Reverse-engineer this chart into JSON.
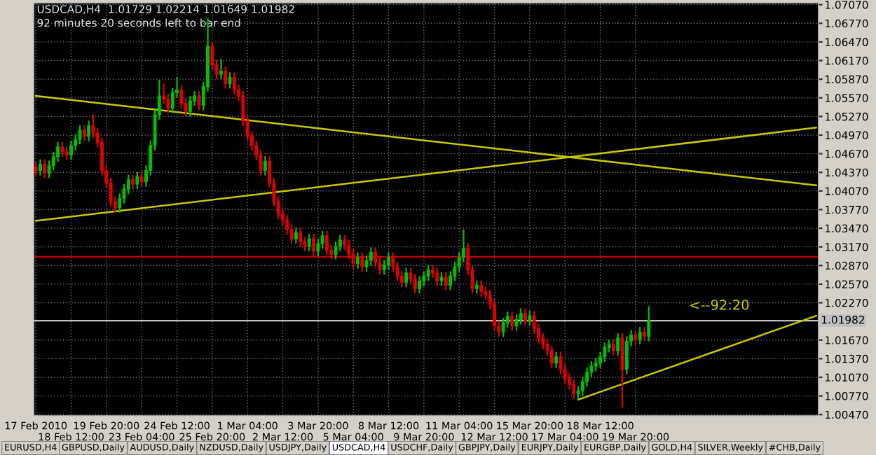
{
  "chart_data": {
    "type": "candlestick",
    "title": "USDCAD,H4  1.01729 1.02214 1.01649 1.01982",
    "subtitle": "92 minutes 20 seconds left to bar end",
    "categories": [
      "17 Feb 2010",
      null,
      null,
      null,
      null,
      null,
      null,
      null,
      "18 Feb 12:00",
      null,
      null,
      null,
      null,
      null,
      null,
      null,
      "19 Feb 20:00",
      null,
      null,
      null,
      null,
      null,
      null,
      null,
      "23 Feb 04:00",
      null,
      null,
      null,
      null,
      null,
      null,
      null,
      "24 Feb 12:00",
      null,
      null,
      null,
      null,
      null,
      null,
      null,
      "25 Feb 20:00",
      null,
      null,
      null,
      null,
      null,
      null,
      null,
      "1 Mar 04:00",
      null,
      null,
      null,
      null,
      null,
      null,
      null,
      "2 Mar 12:00",
      null,
      null,
      null,
      null,
      null,
      null,
      null,
      "3 Mar 20:00",
      null,
      null,
      null,
      null,
      null,
      null,
      null,
      "5 Mar 04:00",
      null,
      null,
      null,
      null,
      null,
      null,
      null,
      "8 Mar 12:00",
      null,
      null,
      null,
      null,
      null,
      null,
      null,
      "9 Mar 20:00",
      null,
      null,
      null,
      null,
      null,
      null,
      null,
      "11 Mar 04:00",
      null,
      null,
      null,
      null,
      null,
      null,
      null,
      "12 Mar 12:00",
      null,
      null,
      null,
      null,
      null,
      null,
      null,
      "15 Mar 20:00",
      null,
      null,
      null,
      null,
      null,
      null,
      null,
      "17 Mar 04:00",
      null,
      null,
      null,
      null,
      null,
      null,
      null,
      "18 Mar 12:00",
      null,
      null,
      null,
      null,
      null,
      null,
      null,
      "19 Mar 20:00",
      null,
      null,
      null,
      null,
      null,
      null,
      null,
      null,
      null,
      null,
      null,
      null,
      null,
      null,
      null,
      null,
      null,
      null,
      null,
      null,
      null,
      null,
      null,
      null,
      null,
      null,
      null,
      null,
      null,
      null,
      null,
      null,
      null,
      null,
      null,
      null,
      null,
      null,
      null,
      null,
      null
    ],
    "ohlc": [
      [
        1.0445,
        1.0453,
        1.0432,
        1.044
      ],
      [
        1.044,
        1.0458,
        1.0432,
        1.045
      ],
      [
        1.045,
        1.0458,
        1.0428,
        1.0436
      ],
      [
        1.0436,
        1.0456,
        1.0428,
        1.0448
      ],
      [
        1.0448,
        1.047,
        1.044,
        1.0462
      ],
      [
        1.0462,
        1.0486,
        1.0454,
        1.0478
      ],
      [
        1.0478,
        1.0486,
        1.0462,
        1.047
      ],
      [
        1.047,
        1.0478,
        1.0457,
        1.0465
      ],
      [
        1.0465,
        1.0488,
        1.0457,
        1.048
      ],
      [
        1.048,
        1.0498,
        1.0472,
        1.049
      ],
      [
        1.049,
        1.0513,
        1.0482,
        1.0505
      ],
      [
        1.0505,
        1.0513,
        1.0487,
        1.0495
      ],
      [
        1.0495,
        1.052,
        1.0487,
        1.0512
      ],
      [
        1.0512,
        1.053,
        1.0492,
        1.05
      ],
      [
        1.05,
        1.0508,
        1.0477,
        1.0485
      ],
      [
        1.0485,
        1.0493,
        1.0432,
        1.044
      ],
      [
        1.044,
        1.0448,
        1.0412,
        1.042
      ],
      [
        1.042,
        1.0428,
        1.0382,
        1.039
      ],
      [
        1.039,
        1.0398,
        1.0372,
        1.038
      ],
      [
        1.038,
        1.0403,
        1.0372,
        1.0395
      ],
      [
        1.0395,
        1.0418,
        1.0387,
        1.041
      ],
      [
        1.041,
        1.0433,
        1.0402,
        1.0425
      ],
      [
        1.0425,
        1.0433,
        1.041,
        1.0418
      ],
      [
        1.0418,
        1.0438,
        1.041,
        1.043
      ],
      [
        1.043,
        1.0438,
        1.0414,
        1.0422
      ],
      [
        1.0422,
        1.0448,
        1.0414,
        1.044
      ],
      [
        1.044,
        1.0488,
        1.0432,
        1.048
      ],
      [
        1.048,
        1.0538,
        1.0472,
        1.053
      ],
      [
        1.053,
        1.0586,
        1.0522,
        1.056
      ],
      [
        1.056,
        1.058,
        1.0547,
        1.0555
      ],
      [
        1.0555,
        1.0563,
        1.0532,
        1.054
      ],
      [
        1.054,
        1.0573,
        1.0532,
        1.0565
      ],
      [
        1.0565,
        1.059,
        1.0557,
        1.057
      ],
      [
        1.057,
        1.0578,
        1.054,
        1.0548
      ],
      [
        1.0548,
        1.0556,
        1.0527,
        1.0535
      ],
      [
        1.0535,
        1.056,
        1.0527,
        1.0552
      ],
      [
        1.0552,
        1.0568,
        1.0544,
        1.056
      ],
      [
        1.056,
        1.0568,
        1.0537,
        1.0545
      ],
      [
        1.0545,
        1.0583,
        1.0537,
        1.0575
      ],
      [
        1.0575,
        1.0686,
        1.0567,
        1.064
      ],
      [
        1.064,
        1.0648,
        1.0602,
        1.061
      ],
      [
        1.061,
        1.0618,
        1.0587,
        1.0595
      ],
      [
        1.0595,
        1.062,
        1.0587,
        1.06
      ],
      [
        1.06,
        1.0608,
        1.0572,
        1.058
      ],
      [
        1.058,
        1.0598,
        1.0572,
        1.059
      ],
      [
        1.059,
        1.0598,
        1.0562,
        1.057
      ],
      [
        1.057,
        1.0578,
        1.0552,
        1.056
      ],
      [
        1.056,
        1.0568,
        1.0512,
        1.052
      ],
      [
        1.052,
        1.0528,
        1.0487,
        1.0495
      ],
      [
        1.0495,
        1.0503,
        1.0472,
        1.048
      ],
      [
        1.048,
        1.0488,
        1.0457,
        1.0465
      ],
      [
        1.0465,
        1.0473,
        1.0432,
        1.044
      ],
      [
        1.044,
        1.0463,
        1.0432,
        1.0455
      ],
      [
        1.0455,
        1.0463,
        1.0412,
        1.042
      ],
      [
        1.042,
        1.0428,
        1.0382,
        1.039
      ],
      [
        1.039,
        1.0398,
        1.0362,
        1.037
      ],
      [
        1.037,
        1.0378,
        1.0352,
        1.036
      ],
      [
        1.036,
        1.0368,
        1.0337,
        1.0345
      ],
      [
        1.0345,
        1.0353,
        1.0322,
        1.033
      ],
      [
        1.033,
        1.0348,
        1.0322,
        1.034
      ],
      [
        1.034,
        1.0348,
        1.0317,
        1.0325
      ],
      [
        1.0325,
        1.0333,
        1.031,
        1.0318
      ],
      [
        1.0318,
        1.0338,
        1.031,
        1.033
      ],
      [
        1.033,
        1.0338,
        1.0302,
        1.031
      ],
      [
        1.031,
        1.033,
        1.0302,
        1.0322
      ],
      [
        1.0322,
        1.0343,
        1.0314,
        1.0335
      ],
      [
        1.0335,
        1.0343,
        1.0304,
        1.0312
      ],
      [
        1.0312,
        1.032,
        1.0297,
        1.0305
      ],
      [
        1.0305,
        1.0326,
        1.0297,
        1.0318
      ],
      [
        1.0318,
        1.0336,
        1.031,
        1.0328
      ],
      [
        1.0328,
        1.0336,
        1.0312,
        1.032
      ],
      [
        1.032,
        1.0328,
        1.0297,
        1.0305
      ],
      [
        1.0305,
        1.0313,
        1.0282,
        1.029
      ],
      [
        1.029,
        1.0308,
        1.0282,
        1.03
      ],
      [
        1.03,
        1.0308,
        1.0277,
        1.0285
      ],
      [
        1.0285,
        1.0303,
        1.0277,
        1.0295
      ],
      [
        1.0295,
        1.0316,
        1.0287,
        1.0308
      ],
      [
        1.0308,
        1.0316,
        1.0284,
        1.0292
      ],
      [
        1.0292,
        1.03,
        1.0272,
        1.028
      ],
      [
        1.028,
        1.0296,
        1.0272,
        1.0288
      ],
      [
        1.0288,
        1.0308,
        1.028,
        1.03
      ],
      [
        1.03,
        1.0308,
        1.0277,
        1.0285
      ],
      [
        1.0285,
        1.0293,
        1.0262,
        1.027
      ],
      [
        1.027,
        1.0278,
        1.0252,
        1.026
      ],
      [
        1.026,
        1.0283,
        1.0252,
        1.0275
      ],
      [
        1.0275,
        1.0283,
        1.0257,
        1.0265
      ],
      [
        1.0265,
        1.0273,
        1.0242,
        1.025
      ],
      [
        1.025,
        1.027,
        1.0242,
        1.0262
      ],
      [
        1.0262,
        1.0278,
        1.0254,
        1.027
      ],
      [
        1.027,
        1.0288,
        1.0262,
        1.028
      ],
      [
        1.028,
        1.0288,
        1.0267,
        1.0275
      ],
      [
        1.0275,
        1.0283,
        1.0254,
        1.0262
      ],
      [
        1.0262,
        1.0276,
        1.0254,
        1.0268
      ],
      [
        1.0268,
        1.0276,
        1.0247,
        1.0255
      ],
      [
        1.0255,
        1.0278,
        1.0247,
        1.027
      ],
      [
        1.027,
        1.0293,
        1.0262,
        1.0285
      ],
      [
        1.0285,
        1.0308,
        1.0277,
        1.03
      ],
      [
        1.03,
        1.0345,
        1.0292,
        1.0315
      ],
      [
        1.0315,
        1.0323,
        1.0272,
        1.028
      ],
      [
        1.028,
        1.0288,
        1.0242,
        1.025
      ],
      [
        1.025,
        1.0263,
        1.0242,
        1.0255
      ],
      [
        1.0255,
        1.0263,
        1.0237,
        1.0245
      ],
      [
        1.0245,
        1.0253,
        1.0232,
        1.024
      ],
      [
        1.024,
        1.0248,
        1.0217,
        1.0225
      ],
      [
        1.0225,
        1.0233,
        1.0182,
        1.019
      ],
      [
        1.019,
        1.0198,
        1.0172,
        1.018
      ],
      [
        1.018,
        1.0203,
        1.0172,
        1.0195
      ],
      [
        1.0195,
        1.0213,
        1.0187,
        1.0205
      ],
      [
        1.0205,
        1.0213,
        1.0182,
        1.019
      ],
      [
        1.019,
        1.0208,
        1.0182,
        1.02
      ],
      [
        1.02,
        1.0218,
        1.0192,
        1.021
      ],
      [
        1.021,
        1.0218,
        1.019,
        1.0198
      ],
      [
        1.0198,
        1.0214,
        1.019,
        1.0206
      ],
      [
        1.0206,
        1.0214,
        1.0177,
        1.0185
      ],
      [
        1.0185,
        1.0193,
        1.0162,
        1.017
      ],
      [
        1.017,
        1.0178,
        1.0152,
        1.016
      ],
      [
        1.016,
        1.0168,
        1.0142,
        1.015
      ],
      [
        1.015,
        1.0158,
        1.0122,
        1.013
      ],
      [
        1.013,
        1.0148,
        1.0122,
        1.014
      ],
      [
        1.014,
        1.0148,
        1.0112,
        1.012
      ],
      [
        1.012,
        1.0128,
        1.0097,
        1.0105
      ],
      [
        1.0105,
        1.0113,
        1.0087,
        1.0095
      ],
      [
        1.0095,
        1.0103,
        1.0072,
        1.008
      ],
      [
        1.008,
        1.0093,
        1.0072,
        1.0085
      ],
      [
        1.0085,
        1.0108,
        1.0077,
        1.01
      ],
      [
        1.01,
        1.0123,
        1.0092,
        1.0115
      ],
      [
        1.0115,
        1.0133,
        1.0107,
        1.0125
      ],
      [
        1.0125,
        1.0138,
        1.0117,
        1.013
      ],
      [
        1.013,
        1.0148,
        1.0122,
        1.014
      ],
      [
        1.014,
        1.0163,
        1.0132,
        1.0155
      ],
      [
        1.0155,
        1.0168,
        1.0147,
        1.016
      ],
      [
        1.016,
        1.0168,
        1.0142,
        1.015
      ],
      [
        1.015,
        1.0178,
        1.0142,
        1.017
      ],
      [
        1.017,
        1.0178,
        1.0058,
        1.012
      ],
      [
        1.012,
        1.0173,
        1.0112,
        1.0165
      ],
      [
        1.0165,
        1.0183,
        1.0157,
        1.0175
      ],
      [
        1.0175,
        1.0183,
        1.016,
        1.0168
      ],
      [
        1.0168,
        1.0188,
        1.016,
        1.018
      ],
      [
        1.018,
        1.0188,
        1.0165,
        1.0173
      ],
      [
        1.01729,
        1.02214,
        1.01649,
        1.01982
      ],
      null,
      null,
      null,
      null,
      null,
      null,
      null,
      null,
      null,
      null,
      null,
      null,
      null,
      null,
      null,
      null,
      null,
      null,
      null,
      null,
      null,
      null,
      null,
      null,
      null,
      null,
      null,
      null,
      null,
      null,
      null,
      null,
      null,
      null,
      null,
      null,
      null,
      null
    ],
    "series": [
      {
        "type": "line",
        "color": "#c8c800",
        "values": [
          1.056,
          null,
          null,
          null,
          null,
          null,
          null,
          null,
          null,
          null,
          null,
          null,
          null,
          null,
          null,
          null,
          null,
          null,
          null,
          null,
          null,
          null,
          null,
          null,
          null,
          null,
          null,
          null,
          null,
          null,
          null,
          null,
          null,
          null,
          null,
          null,
          null,
          null,
          null,
          null,
          null,
          null,
          null,
          null,
          null,
          null,
          null,
          null,
          null,
          null,
          null,
          null,
          null,
          null,
          null,
          null,
          null,
          null,
          null,
          null,
          null,
          null,
          null,
          null,
          null,
          null,
          null,
          null,
          null,
          null,
          null,
          null,
          null,
          null,
          null,
          null,
          null,
          null,
          null,
          null,
          null,
          null,
          null,
          null,
          null,
          null,
          null,
          null,
          null,
          null,
          null,
          null,
          null,
          null,
          null,
          null,
          null,
          null,
          null,
          null,
          null,
          null,
          null,
          null,
          null,
          null,
          null,
          null,
          null,
          null,
          null,
          null,
          null,
          null,
          null,
          null,
          null,
          null,
          null,
          null,
          null,
          null,
          null,
          null,
          null,
          null,
          null,
          null,
          null,
          null,
          null,
          null,
          null,
          null,
          null,
          null,
          null,
          null,
          null,
          null,
          null,
          null,
          null,
          null,
          null,
          null,
          null,
          null,
          null,
          null,
          null,
          null,
          null,
          null,
          null,
          null,
          null,
          null,
          null,
          null,
          null,
          null,
          null,
          null,
          null,
          null,
          null,
          null,
          null,
          null,
          null,
          null,
          null,
          null,
          null,
          null,
          null,
          1.0416
        ]
      },
      {
        "type": "line",
        "color": "#c8c800",
        "values": [
          1.0359,
          null,
          null,
          null,
          null,
          null,
          null,
          null,
          null,
          null,
          null,
          null,
          null,
          null,
          null,
          null,
          null,
          null,
          null,
          null,
          null,
          null,
          null,
          null,
          null,
          null,
          null,
          null,
          null,
          null,
          null,
          null,
          null,
          null,
          null,
          null,
          null,
          null,
          null,
          null,
          null,
          null,
          null,
          null,
          null,
          null,
          null,
          null,
          null,
          null,
          null,
          null,
          null,
          null,
          null,
          null,
          null,
          null,
          null,
          null,
          null,
          null,
          null,
          null,
          null,
          null,
          null,
          null,
          null,
          null,
          null,
          null,
          null,
          null,
          null,
          null,
          null,
          null,
          null,
          null,
          null,
          null,
          null,
          null,
          null,
          null,
          null,
          null,
          null,
          null,
          null,
          null,
          null,
          null,
          null,
          null,
          null,
          null,
          null,
          null,
          null,
          null,
          null,
          null,
          null,
          null,
          null,
          null,
          null,
          null,
          null,
          null,
          null,
          null,
          null,
          null,
          null,
          null,
          null,
          null,
          null,
          null,
          null,
          null,
          null,
          null,
          null,
          null,
          null,
          null,
          null,
          null,
          null,
          null,
          null,
          null,
          null,
          null,
          null,
          null,
          null,
          null,
          null,
          null,
          null,
          null,
          null,
          null,
          null,
          null,
          null,
          null,
          null,
          null,
          null,
          null,
          null,
          null,
          null,
          null,
          null,
          null,
          null,
          null,
          null,
          null,
          null,
          null,
          null,
          null,
          null,
          null,
          null,
          null,
          null,
          null,
          null,
          1.0509
        ]
      },
      {
        "type": "line",
        "color": "#c8c800",
        "values": [
          null,
          null,
          null,
          null,
          null,
          null,
          null,
          null,
          null,
          null,
          null,
          null,
          null,
          null,
          null,
          null,
          null,
          null,
          null,
          null,
          null,
          null,
          null,
          null,
          null,
          null,
          null,
          null,
          null,
          null,
          null,
          null,
          null,
          null,
          null,
          null,
          null,
          null,
          null,
          null,
          null,
          null,
          null,
          null,
          null,
          null,
          null,
          null,
          null,
          null,
          null,
          null,
          null,
          null,
          null,
          null,
          null,
          null,
          null,
          null,
          null,
          null,
          null,
          null,
          null,
          null,
          null,
          null,
          null,
          null,
          null,
          null,
          null,
          null,
          null,
          null,
          null,
          null,
          null,
          null,
          null,
          null,
          null,
          null,
          null,
          null,
          null,
          null,
          null,
          null,
          null,
          null,
          null,
          null,
          null,
          null,
          null,
          null,
          null,
          null,
          null,
          null,
          null,
          null,
          null,
          null,
          null,
          null,
          null,
          null,
          null,
          null,
          null,
          null,
          null,
          null,
          null,
          null,
          null,
          null,
          null,
          null,
          null,
          1.0071,
          null,
          null,
          null,
          null,
          null,
          null,
          null,
          null,
          null,
          null,
          null,
          null,
          null,
          null,
          null,
          null,
          null,
          null,
          null,
          null,
          null,
          null,
          null,
          null,
          null,
          null,
          null,
          null,
          null,
          null,
          null,
          null,
          null,
          null,
          null,
          null,
          null,
          null,
          null,
          null,
          null,
          null,
          null,
          null,
          null,
          null,
          null,
          null,
          null,
          null,
          null,
          null,
          null,
          1.0206
        ]
      }
    ],
    "ref_lines": [
      {
        "axis": "y",
        "value": 1.0301,
        "color": "#c00000",
        "line_style": "solid"
      },
      {
        "axis": "y",
        "value": 1.01982,
        "label": "1.01982",
        "color": "#c0c0c0",
        "line_style": "solid"
      }
    ],
    "annotations": [
      "<--92:20",
      "EURUSD,H4",
      "GBPUSD,Daily",
      "AUDUSD,Daily",
      "NZDUSD,Daily",
      "USDJPY,Daily",
      "USDCAD,H4",
      "USDCHF,Daily",
      "GBPJPY,Daily",
      "EURJPY,Daily",
      "EURGBP,Daily",
      "GOLD,H4",
      "SILVER,Weekly",
      "#CHB,Daily"
    ],
    "ylim": [
      1.0045,
      1.071
    ],
    "yticks": [
      {
        "value": 1.0047,
        "label": "1.00470"
      },
      {
        "value": 1.0077,
        "label": "1.00770"
      },
      {
        "value": 1.0107,
        "label": "1.01070"
      },
      {
        "value": 1.0137,
        "label": "1.01370"
      },
      {
        "value": 1.0167,
        "label": "1.01670"
      },
      {
        "value": 1.0227,
        "label": "1.02270"
      },
      {
        "value": 1.0257,
        "label": "1.02570"
      },
      {
        "value": 1.0287,
        "label": "1.02870"
      },
      {
        "value": 1.0317,
        "label": "1.03170"
      },
      {
        "value": 1.0347,
        "label": "1.03470"
      },
      {
        "value": 1.0377,
        "label": "1.03770"
      },
      {
        "value": 1.0407,
        "label": "1.04070"
      },
      {
        "value": 1.0437,
        "label": "1.04370"
      },
      {
        "value": 1.0467,
        "label": "1.04670"
      },
      {
        "value": 1.0497,
        "label": "1.04970"
      },
      {
        "value": 1.0527,
        "label": "1.05270"
      },
      {
        "value": 1.0557,
        "label": "1.05570"
      },
      {
        "value": 1.0587,
        "label": "1.05870"
      },
      {
        "value": 1.0617,
        "label": "1.06170"
      },
      {
        "value": 1.0647,
        "label": "1.06470"
      },
      {
        "value": 1.0677,
        "label": "1.06770"
      },
      {
        "value": 1.0707,
        "label": "1.07070"
      }
    ],
    "grid": true
  }
}
